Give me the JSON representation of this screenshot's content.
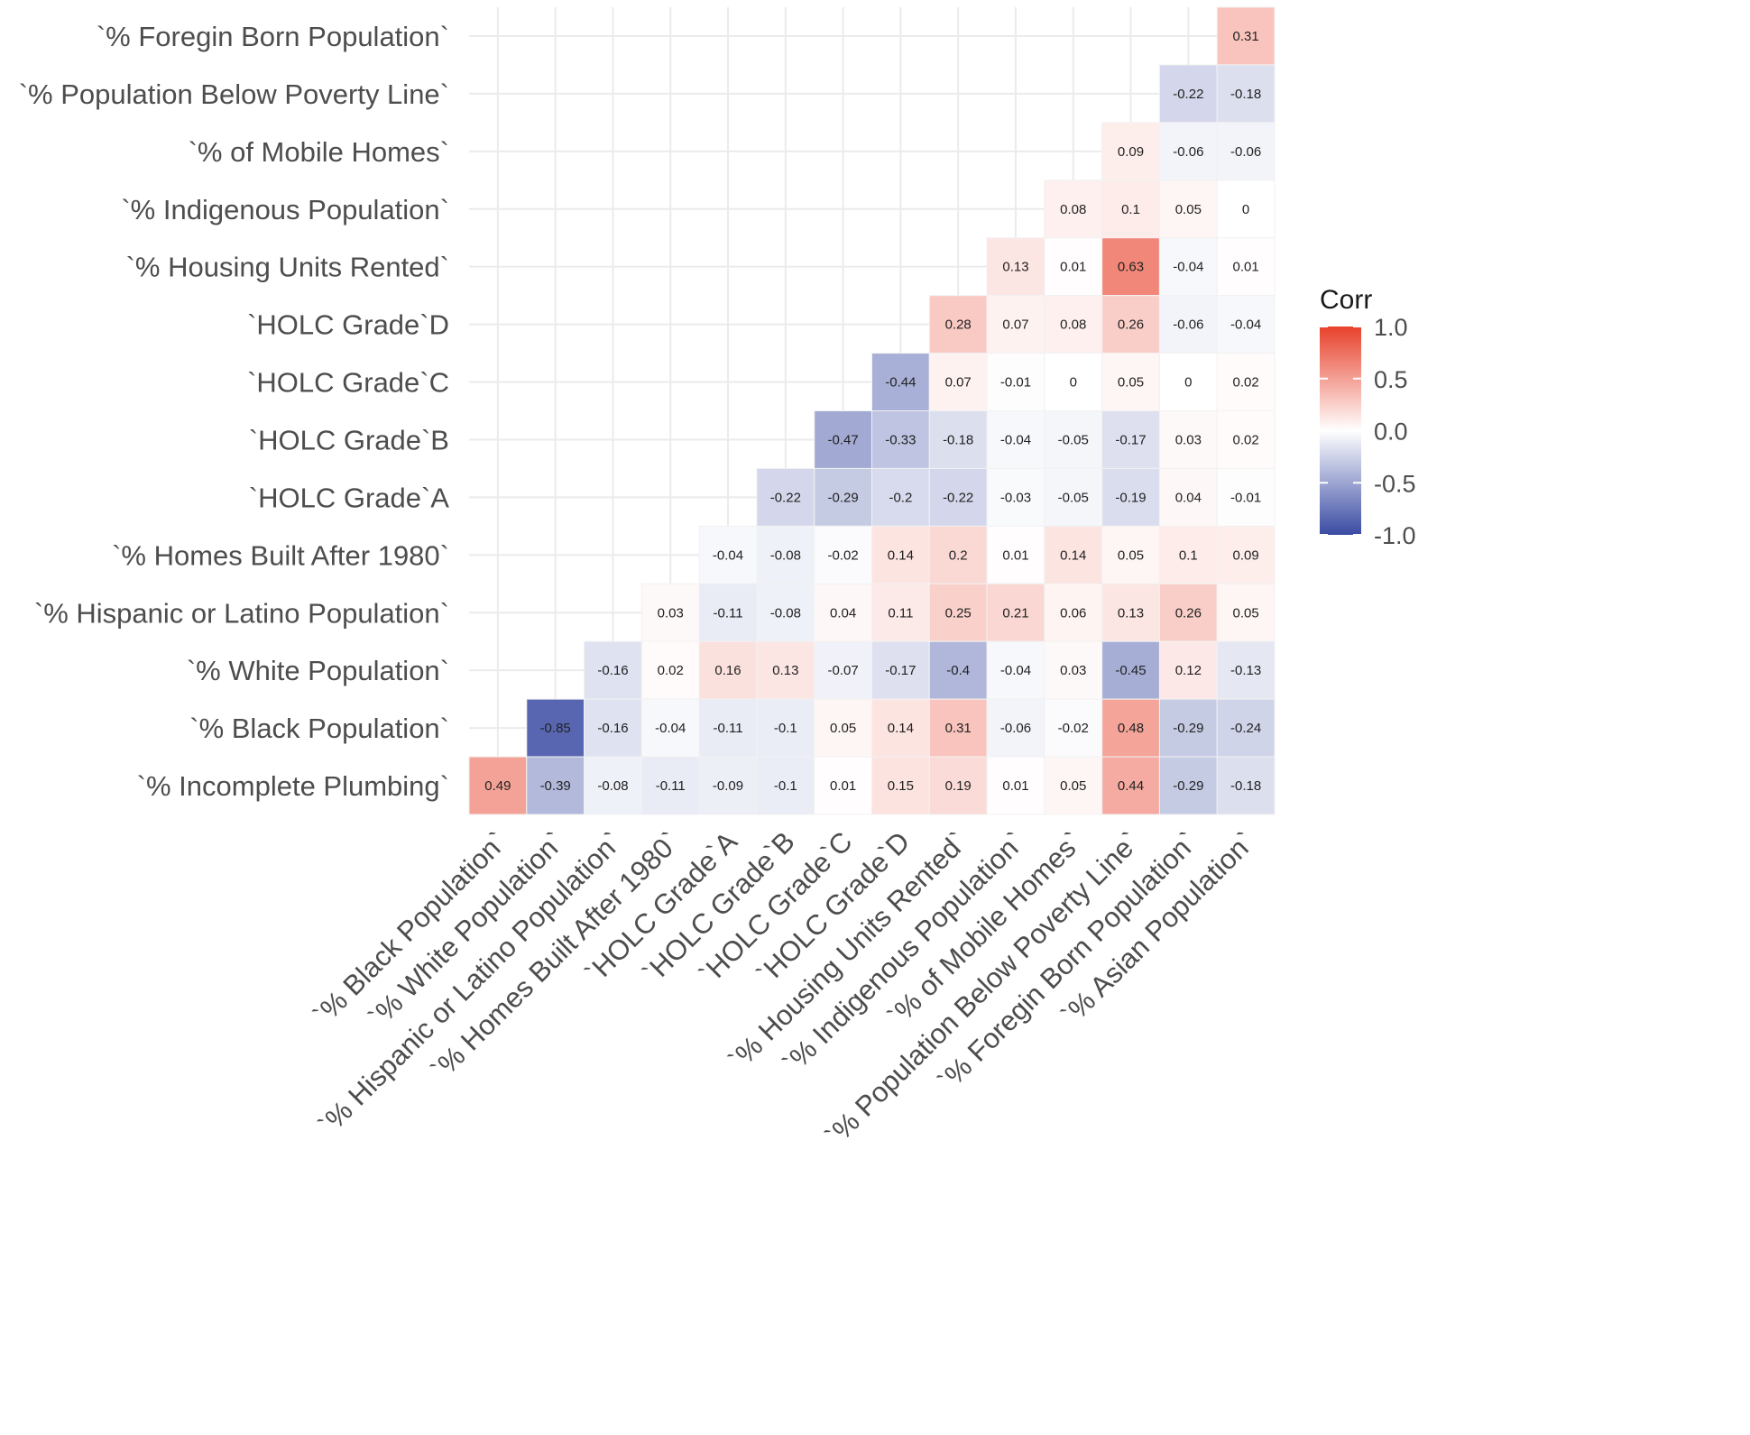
{
  "chart_data": {
    "type": "heatmap",
    "title": "",
    "xlabel": "",
    "ylabel": "",
    "x_categories": [
      "`% Black Population`",
      "`% White Population`",
      "`% Hispanic or Latino Population`",
      "`% Homes Built After 1980`",
      "`HOLC Grade`A",
      "`HOLC Grade`B",
      "`HOLC Grade`C",
      "`HOLC Grade`D",
      "`% Housing Units Rented`",
      "`% Indigenous Population`",
      "`% of Mobile Homes`",
      "`% Population Below Poverty Line`",
      "`% Foregin Born Population`",
      "`% Asian Population`"
    ],
    "y_categories": [
      "`% Foregin Born Population`",
      "`% Population Below Poverty Line`",
      "`% of Mobile Homes`",
      "`% Indigenous Population`",
      "`% Housing Units Rented`",
      "`HOLC Grade`D",
      "`HOLC Grade`C",
      "`HOLC Grade`B",
      "`HOLC Grade`A",
      "`% Homes Built After 1980`",
      "`% Hispanic or Latino Population`",
      "`% White Population`",
      "`% Black Population`",
      "`% Incomplete Plumbing`"
    ],
    "values": [
      [
        null,
        null,
        null,
        null,
        null,
        null,
        null,
        null,
        null,
        null,
        null,
        null,
        null,
        0.31
      ],
      [
        null,
        null,
        null,
        null,
        null,
        null,
        null,
        null,
        null,
        null,
        null,
        null,
        -0.22,
        -0.18
      ],
      [
        null,
        null,
        null,
        null,
        null,
        null,
        null,
        null,
        null,
        null,
        null,
        0.09,
        -0.06,
        -0.06
      ],
      [
        null,
        null,
        null,
        null,
        null,
        null,
        null,
        null,
        null,
        null,
        0.08,
        0.1,
        0.05,
        0
      ],
      [
        null,
        null,
        null,
        null,
        null,
        null,
        null,
        null,
        null,
        0.13,
        0.01,
        0.63,
        -0.04,
        0.01
      ],
      [
        null,
        null,
        null,
        null,
        null,
        null,
        null,
        null,
        0.28,
        0.07,
        0.08,
        0.26,
        -0.06,
        -0.04
      ],
      [
        null,
        null,
        null,
        null,
        null,
        null,
        null,
        -0.44,
        0.07,
        -0.01,
        0,
        0.05,
        0,
        0.02
      ],
      [
        null,
        null,
        null,
        null,
        null,
        null,
        -0.47,
        -0.33,
        -0.18,
        -0.04,
        -0.05,
        -0.17,
        0.03,
        0.02
      ],
      [
        null,
        null,
        null,
        null,
        null,
        -0.22,
        -0.29,
        -0.2,
        -0.22,
        -0.03,
        -0.05,
        -0.19,
        0.04,
        -0.01
      ],
      [
        null,
        null,
        null,
        null,
        -0.04,
        -0.08,
        -0.02,
        0.14,
        0.2,
        0.01,
        0.14,
        0.05,
        0.1,
        0.09
      ],
      [
        null,
        null,
        null,
        0.03,
        -0.11,
        -0.08,
        0.04,
        0.11,
        0.25,
        0.21,
        0.06,
        0.13,
        0.26,
        0.05
      ],
      [
        null,
        null,
        -0.16,
        0.02,
        0.16,
        0.13,
        -0.07,
        -0.17,
        -0.4,
        -0.04,
        0.03,
        -0.45,
        0.12,
        -0.13
      ],
      [
        null,
        -0.85,
        -0.16,
        -0.04,
        -0.11,
        -0.1,
        0.05,
        0.14,
        0.31,
        -0.06,
        -0.02,
        0.48,
        -0.29,
        -0.24
      ],
      [
        0.49,
        -0.39,
        -0.08,
        -0.11,
        -0.09,
        -0.1,
        0.01,
        0.15,
        0.19,
        0.01,
        0.05,
        0.44,
        -0.29,
        -0.18
      ]
    ],
    "color_scale": {
      "low": "#3a4ba3",
      "mid": "#ffffff",
      "high": "#e8412b",
      "limits": [
        -1,
        1
      ]
    },
    "legend": {
      "title": "Corr",
      "ticks": [
        1.0,
        0.5,
        0.0,
        -0.5,
        -1.0
      ],
      "tick_labels": [
        "1.0",
        "0.5",
        "0.0",
        "-0.5",
        "-1.0"
      ],
      "position": "right"
    },
    "grid": true
  }
}
